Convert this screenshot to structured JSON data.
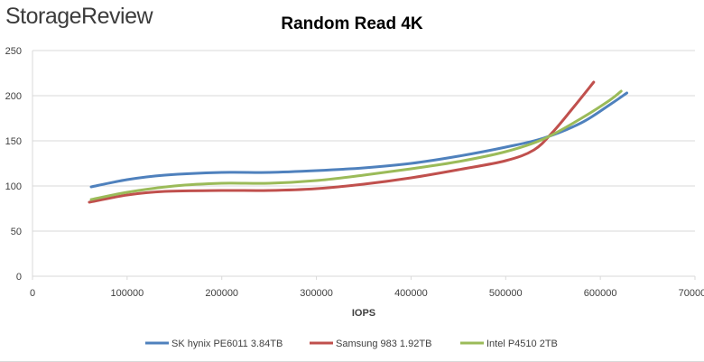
{
  "logo": {
    "text": "StorageReview"
  },
  "chart_data": {
    "type": "line",
    "title": "Random Read 4K",
    "xlabel": "IOPS",
    "ylabel": "",
    "xlim": [
      0,
      700000
    ],
    "ylim": [
      0,
      250
    ],
    "x_ticks": [
      0,
      100000,
      200000,
      300000,
      400000,
      500000,
      600000,
      700000
    ],
    "y_ticks": [
      0,
      50,
      100,
      150,
      200,
      250
    ],
    "grid": "horizontal",
    "legend_position": "bottom",
    "series": [
      {
        "name": "SK hynix PE6011 3.84TB",
        "color": "#4f81bd",
        "x": [
          62000,
          100000,
          140000,
          200000,
          250000,
          300000,
          350000,
          400000,
          450000,
          500000,
          540000,
          580000,
          610000,
          628000
        ],
        "y": [
          99,
          107,
          112,
          115,
          115,
          117,
          120,
          125,
          133,
          143,
          153,
          170,
          190,
          203
        ]
      },
      {
        "name": "Samsung 983 1.92TB",
        "color": "#c0504d",
        "x": [
          60000,
          100000,
          140000,
          200000,
          250000,
          300000,
          350000,
          400000,
          450000,
          500000,
          530000,
          550000,
          570000,
          593000
        ],
        "y": [
          82,
          90,
          94,
          95,
          95,
          97,
          102,
          109,
          118,
          128,
          140,
          160,
          185,
          215
        ]
      },
      {
        "name": "Intel P4510 2TB",
        "color": "#9bbb59",
        "x": [
          62000,
          100000,
          150000,
          200000,
          250000,
          300000,
          350000,
          400000,
          450000,
          500000,
          540000,
          580000,
          610000,
          622000
        ],
        "y": [
          85,
          93,
          100,
          103,
          103,
          106,
          112,
          119,
          127,
          138,
          152,
          175,
          195,
          205
        ]
      }
    ]
  }
}
